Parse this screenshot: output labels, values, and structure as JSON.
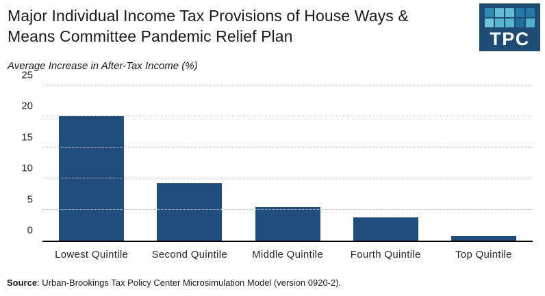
{
  "header": {
    "title_line1": "Major Individual Income Tax Provisions of House Ways &",
    "title_line2": "Means Committee Pandemic Relief Plan",
    "subtitle": "Average Increase in After-Tax Income (%)"
  },
  "logo": {
    "text": "TPC",
    "bg_color": "#1d4b72",
    "square_colors": [
      [
        "#2f8db4",
        "#63bcd3",
        "#63bcd3",
        "#2679a9",
        "#2679a9"
      ],
      [
        "#6ec4d8",
        "#57b4cc",
        "#57b4cc",
        "#1f6fa0",
        "#4fb0c8"
      ]
    ]
  },
  "chart_data": {
    "type": "bar",
    "title": "Major Individual Income Tax Provisions of House Ways & Means Committee Pandemic Relief Plan",
    "subtitle": "Average Increase in After-Tax Income (%)",
    "categories": [
      "Lowest Quintile",
      "Second Quintile",
      "Middle Quintile",
      "Fourth Quintile",
      "Top Quintile"
    ],
    "values": [
      20.1,
      9.3,
      5.4,
      3.7,
      0.8
    ],
    "ylim": [
      0,
      25
    ],
    "yticks": [
      0,
      5,
      10,
      15,
      20,
      25
    ],
    "bar_color": "#1f4e7c",
    "gridline_color": "#c9c9c9",
    "axis_color": "#000000",
    "grid": true,
    "legend": false
  },
  "footer": {
    "source_label": "Source",
    "source_text": ": Urban-Brookings Tax Policy Center Microsimulation Model (version 0920-2)."
  }
}
